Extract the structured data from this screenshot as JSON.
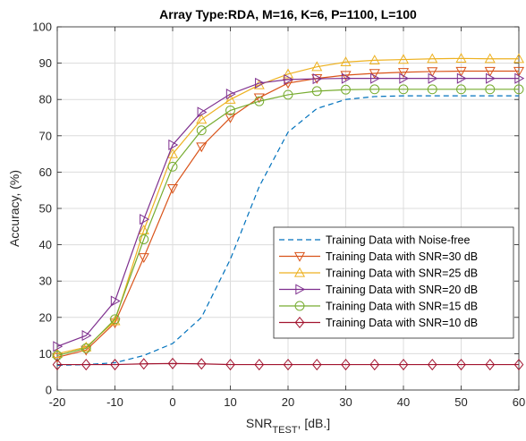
{
  "chart_data": {
    "type": "line",
    "title": "Array Type:RDA, M=16, K=6, P=1100, L=100",
    "xlabel_main": "SNR",
    "xlabel_sub": "TEST",
    "xlabel_tail": ", [dB.]",
    "ylabel": "Accuracy, (%)",
    "xlim": [
      -20,
      60
    ],
    "ylim": [
      0,
      100
    ],
    "x_ticks": [
      -20,
      -10,
      0,
      10,
      20,
      30,
      40,
      50,
      60
    ],
    "y_ticks": [
      0,
      10,
      20,
      30,
      40,
      50,
      60,
      70,
      80,
      90,
      100
    ],
    "grid": true,
    "legend_position": "right-lower",
    "x": [
      -20,
      -15,
      -10,
      -5,
      0,
      5,
      10,
      15,
      20,
      25,
      30,
      35,
      40,
      45,
      50,
      55,
      60
    ],
    "series": [
      {
        "name": "Training Data with Noise-free",
        "color": "#0072BD",
        "marker": "none",
        "dash": "6,4",
        "values": [
          6.8,
          7.0,
          7.5,
          9.5,
          12.8,
          20.0,
          36.0,
          56.0,
          71.0,
          77.5,
          80.0,
          80.8,
          81.0,
          81.0,
          81.0,
          81.0,
          81.0
        ]
      },
      {
        "name": "Training Data with SNR=30 dB",
        "color": "#D95319",
        "marker": "triangle-down",
        "values": [
          9.0,
          11.0,
          18.5,
          36.5,
          55.5,
          67.0,
          75.0,
          80.5,
          84.5,
          85.8,
          86.7,
          87.2,
          87.5,
          87.7,
          87.8,
          87.8,
          87.8
        ]
      },
      {
        "name": "Training Data with SNR=25 dB",
        "color": "#EDB120",
        "marker": "triangle-up",
        "values": [
          10.0,
          11.8,
          19.0,
          44.0,
          65.0,
          74.5,
          80.0,
          84.0,
          87.0,
          89.0,
          90.3,
          90.8,
          91.0,
          91.2,
          91.3,
          91.2,
          91.2
        ]
      },
      {
        "name": "Training Data with SNR=20 dB",
        "color": "#7E2F8E",
        "marker": "triangle-right",
        "values": [
          12.0,
          15.0,
          24.5,
          47.0,
          67.5,
          76.5,
          81.5,
          84.5,
          85.5,
          85.7,
          85.8,
          85.8,
          85.8,
          85.8,
          85.8,
          85.8,
          85.8
        ]
      },
      {
        "name": "Training Data with SNR=15 dB",
        "color": "#77AC30",
        "marker": "circle",
        "values": [
          9.5,
          11.5,
          19.5,
          41.5,
          61.5,
          71.5,
          77.0,
          79.5,
          81.3,
          82.3,
          82.7,
          82.8,
          82.8,
          82.8,
          82.8,
          82.8,
          82.8
        ]
      },
      {
        "name": "Training Data with SNR=10 dB",
        "color": "#A2142F",
        "marker": "diamond",
        "values": [
          7.0,
          7.0,
          7.0,
          7.2,
          7.3,
          7.2,
          7.0,
          7.0,
          7.0,
          7.0,
          7.0,
          7.0,
          7.0,
          7.0,
          7.0,
          7.0,
          7.0
        ]
      }
    ]
  }
}
